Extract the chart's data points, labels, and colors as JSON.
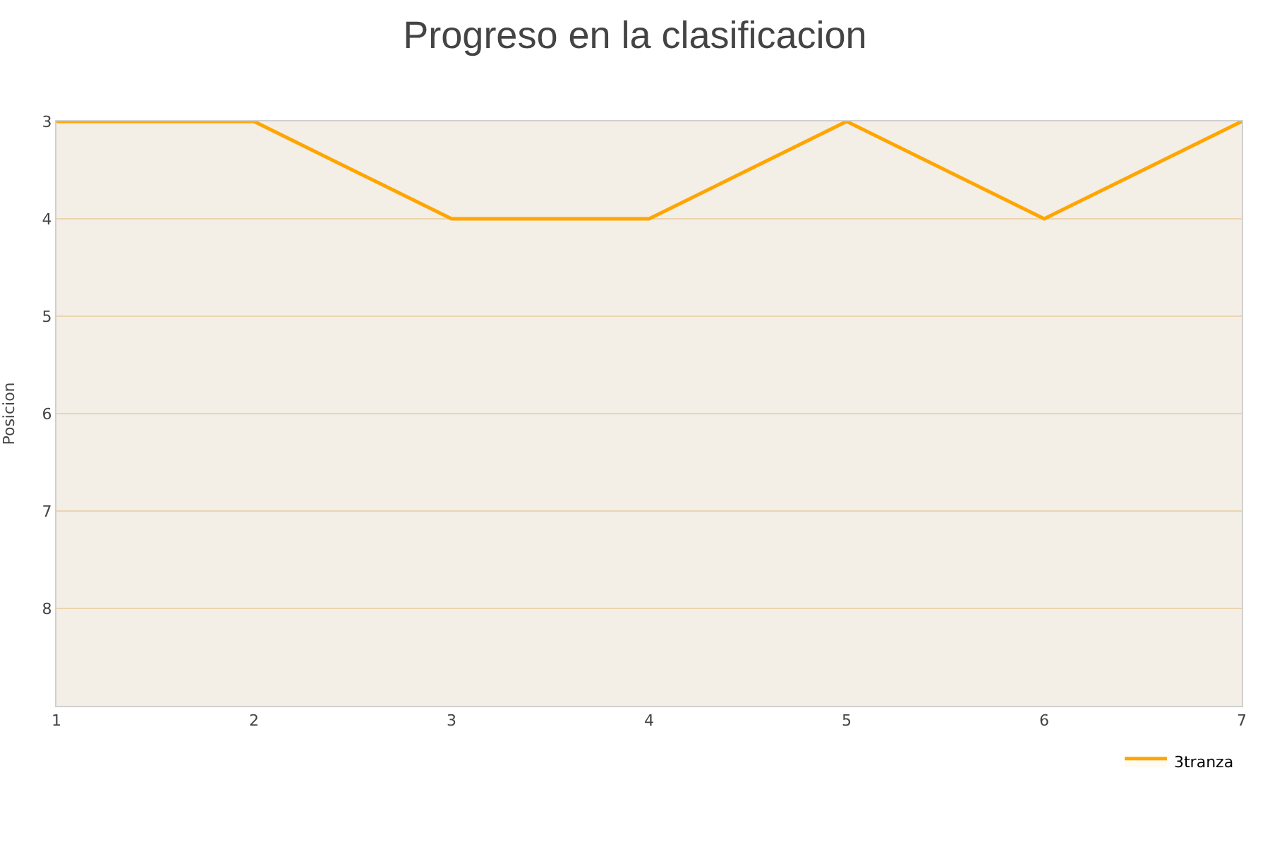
{
  "chart_data": {
    "type": "area",
    "title": "Progreso en la clasificacion",
    "ylabel": "Posicion",
    "x": [
      1,
      2,
      3,
      4,
      5,
      6,
      7
    ],
    "series": [
      {
        "name": "3tranza",
        "color": "#ffa500",
        "values": [
          3,
          3,
          4,
          4,
          3,
          4,
          3
        ]
      }
    ],
    "xlim": [
      1,
      7
    ],
    "xticks": [
      1,
      2,
      3,
      4,
      5,
      6,
      7
    ],
    "ylim": [
      9,
      3
    ],
    "yticks": [
      3,
      4,
      5,
      6,
      7,
      8
    ],
    "grid": "y",
    "legend": "bottom right",
    "marker": "none",
    "line_style": "solid"
  }
}
